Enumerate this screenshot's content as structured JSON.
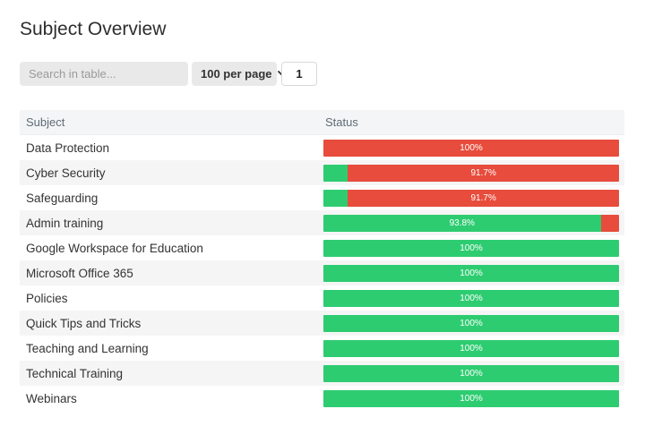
{
  "page": {
    "title": "Subject Overview"
  },
  "controls": {
    "search_placeholder": "Search in table...",
    "per_page": "100 per page",
    "page_number": "1"
  },
  "colors": {
    "complete_green": "#2ecc71",
    "incomplete_red": "#e74c3c"
  },
  "table": {
    "columns": [
      "Subject",
      "Status"
    ],
    "rows": [
      {
        "subject": "Data Protection",
        "green_pct": 0,
        "red_pct": 100,
        "label": "100%",
        "label_on": "red"
      },
      {
        "subject": "Cyber Security",
        "green_pct": 8.3,
        "red_pct": 91.7,
        "label": "91.7%",
        "label_on": "red"
      },
      {
        "subject": "Safeguarding",
        "green_pct": 8.3,
        "red_pct": 91.7,
        "label": "91.7%",
        "label_on": "red"
      },
      {
        "subject": "Admin training",
        "green_pct": 93.8,
        "red_pct": 6.2,
        "label": "93.8%",
        "label_on": "green"
      },
      {
        "subject": "Google Workspace for Education",
        "green_pct": 100,
        "red_pct": 0,
        "label": "100%",
        "label_on": "green"
      },
      {
        "subject": "Microsoft Office 365",
        "green_pct": 100,
        "red_pct": 0,
        "label": "100%",
        "label_on": "green"
      },
      {
        "subject": "Policies",
        "green_pct": 100,
        "red_pct": 0,
        "label": "100%",
        "label_on": "green"
      },
      {
        "subject": "Quick Tips and Tricks",
        "green_pct": 100,
        "red_pct": 0,
        "label": "100%",
        "label_on": "green"
      },
      {
        "subject": "Teaching and Learning",
        "green_pct": 100,
        "red_pct": 0,
        "label": "100%",
        "label_on": "green"
      },
      {
        "subject": "Technical Training",
        "green_pct": 100,
        "red_pct": 0,
        "label": "100%",
        "label_on": "green"
      },
      {
        "subject": "Webinars",
        "green_pct": 100,
        "red_pct": 0,
        "label": "100%",
        "label_on": "green"
      }
    ]
  }
}
